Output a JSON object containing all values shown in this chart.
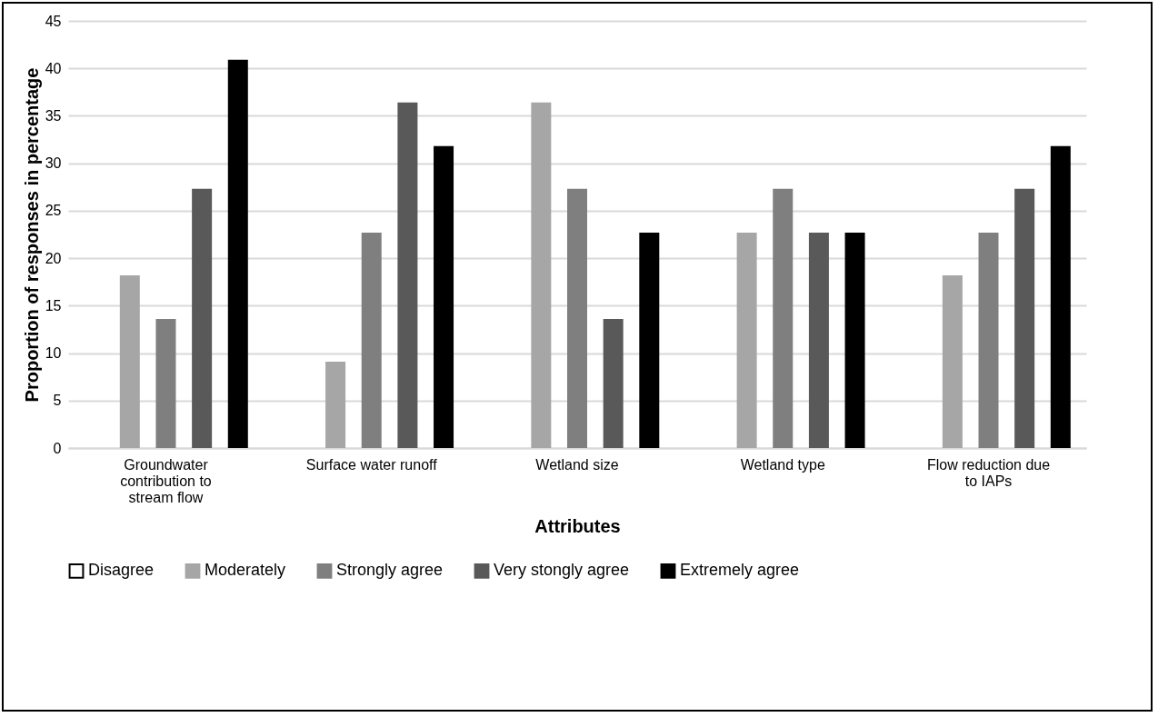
{
  "chart_data": {
    "type": "bar",
    "xlabel": "Attributes",
    "ylabel": "Proportion of responses in percentage",
    "categories": [
      "Groundwater contribution to stream flow",
      "Surface water runoff",
      "Wetland size",
      "Wetland type",
      "Flow reduction due to IAPs"
    ],
    "series": [
      {
        "name": "Disagree",
        "color": "#ffffff",
        "values": [
          0,
          0,
          0,
          0,
          0
        ]
      },
      {
        "name": "Moderately",
        "color": "#a6a6a6",
        "values": [
          18.2,
          9.1,
          36.4,
          22.7,
          18.2
        ]
      },
      {
        "name": "Strongly agree",
        "color": "#7f7f7f",
        "values": [
          13.6,
          22.7,
          27.3,
          27.3,
          22.7
        ]
      },
      {
        "name": "Very stongly agree",
        "color": "#595959",
        "values": [
          27.3,
          36.4,
          13.6,
          22.7,
          27.3
        ]
      },
      {
        "name": "Extremely agree",
        "color": "#000000",
        "values": [
          40.9,
          31.8,
          22.7,
          22.7,
          31.8
        ]
      }
    ],
    "ylim": [
      0,
      45
    ],
    "yticks": [
      0,
      5,
      10,
      15,
      20,
      25,
      30,
      35,
      40,
      45
    ],
    "grid": "y",
    "legend": "bottom"
  }
}
